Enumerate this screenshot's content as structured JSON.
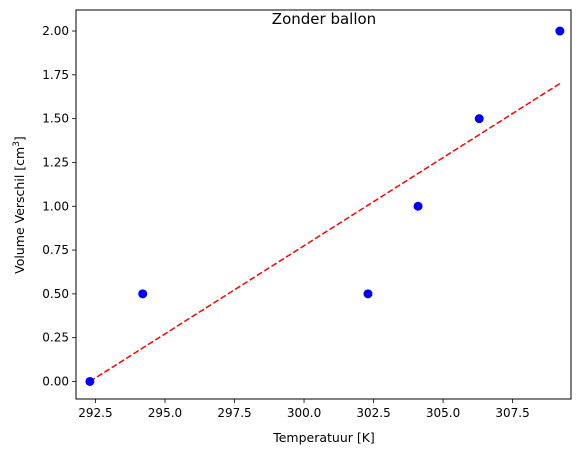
{
  "chart_data": {
    "type": "scatter",
    "title": "Zonder ballon",
    "xlabel": "Temperatuur [K]",
    "ylabel": "Volume Verschil [cm",
    "ylabel_sup": "3",
    "ylabel_end": "]",
    "xlim": [
      291.8,
      309.6
    ],
    "ylim": [
      -0.1,
      2.12
    ],
    "xticks": [
      292.5,
      295.0,
      297.5,
      300.0,
      302.5,
      305.0,
      307.5
    ],
    "xtick_labels": [
      "292.5",
      "295.0",
      "297.5",
      "300.0",
      "302.5",
      "305.0",
      "307.5"
    ],
    "yticks": [
      0.0,
      0.25,
      0.5,
      0.75,
      1.0,
      1.25,
      1.5,
      1.75,
      2.0
    ],
    "ytick_labels": [
      "0.00",
      "0.25",
      "0.50",
      "0.75",
      "1.00",
      "1.25",
      "1.50",
      "1.75",
      "2.00"
    ],
    "grid": false,
    "series": [
      {
        "kind": "markers",
        "color": "#0000ff",
        "x": [
          292.3,
          294.2,
          302.3,
          304.1,
          306.3,
          309.2
        ],
        "y": [
          0.0,
          0.5,
          0.5,
          1.0,
          1.5,
          2.0
        ]
      },
      {
        "kind": "fit-line",
        "style": "dashed",
        "color": "#ff0000",
        "x": [
          292.3,
          309.2
        ],
        "y": [
          0.0,
          1.7
        ]
      }
    ]
  }
}
